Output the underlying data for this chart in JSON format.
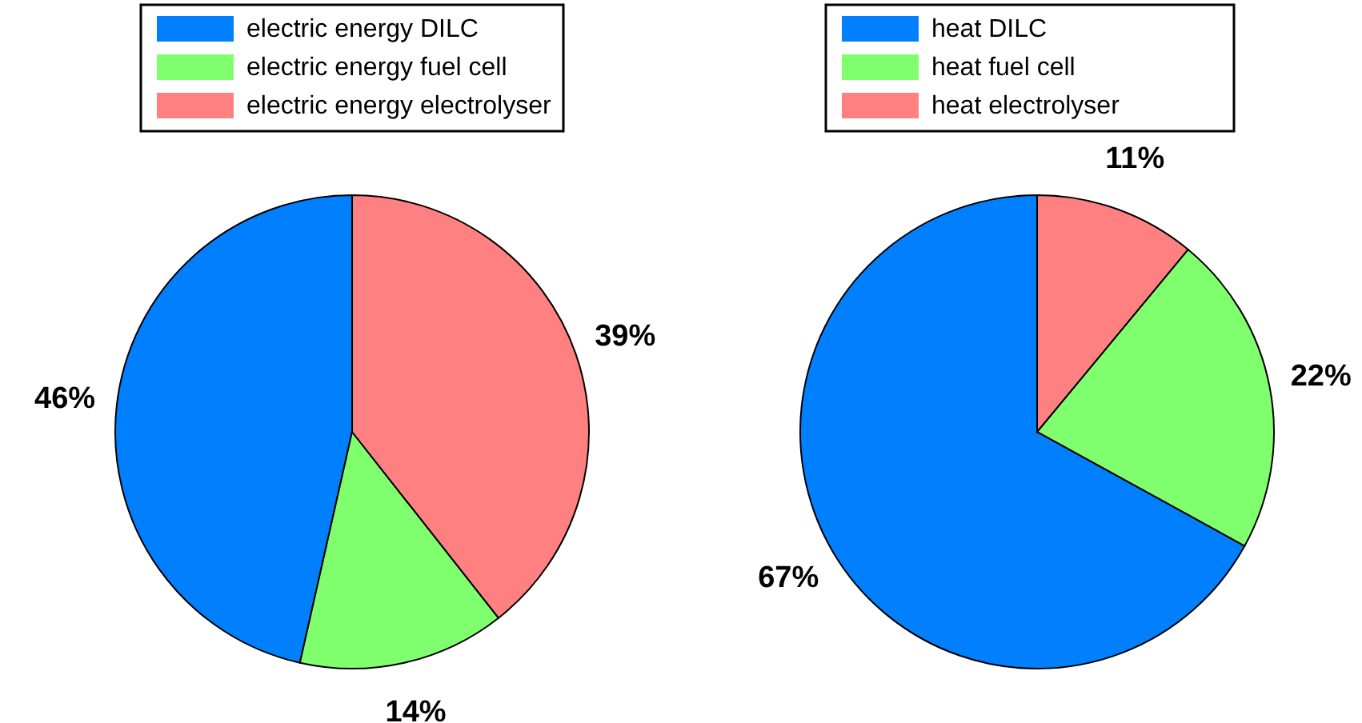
{
  "chart_data": [
    {
      "type": "pie",
      "categories": [
        "electric energy DILC",
        "electric energy fuel cell",
        "electric energy electrolyser"
      ],
      "values": [
        46,
        14,
        39
      ],
      "value_labels": [
        "46%",
        "14%",
        "39%"
      ],
      "colors": [
        "#0080ff",
        "#80ff6e",
        "#ff8080"
      ],
      "legend": "top"
    },
    {
      "type": "pie",
      "categories": [
        "heat DILC",
        "heat fuel cell",
        "heat electrolyser"
      ],
      "values": [
        67,
        22,
        11
      ],
      "value_labels": [
        "67%",
        "22%",
        "11%"
      ],
      "colors": [
        "#0080ff",
        "#80ff6e",
        "#ff8080"
      ],
      "legend": "top"
    }
  ]
}
